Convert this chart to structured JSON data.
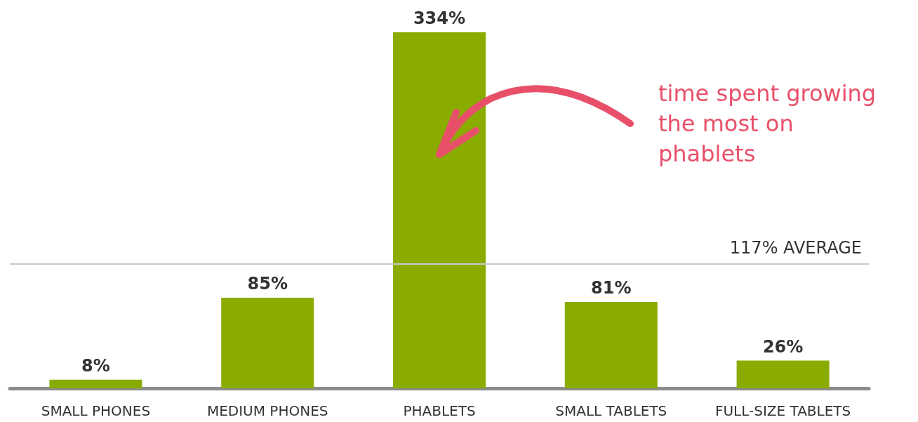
{
  "chart_data": {
    "type": "bar",
    "categories": [
      "SMALL PHONES",
      "MEDIUM PHONES",
      "PHABLETS",
      "SMALL TABLETS",
      "FULL-SIZE TABLETS"
    ],
    "values": [
      8,
      85,
      334,
      81,
      26
    ],
    "value_labels": [
      "8%",
      "85%",
      "334%",
      "81%",
      "26%"
    ],
    "color": "#8aac00",
    "ref_lines": [
      {
        "axis": "y",
        "value": 117,
        "label": "117% AVERAGE",
        "color": "#c8c8c8"
      }
    ],
    "annotations": [
      "time spent growing the most on phablets"
    ]
  }
}
